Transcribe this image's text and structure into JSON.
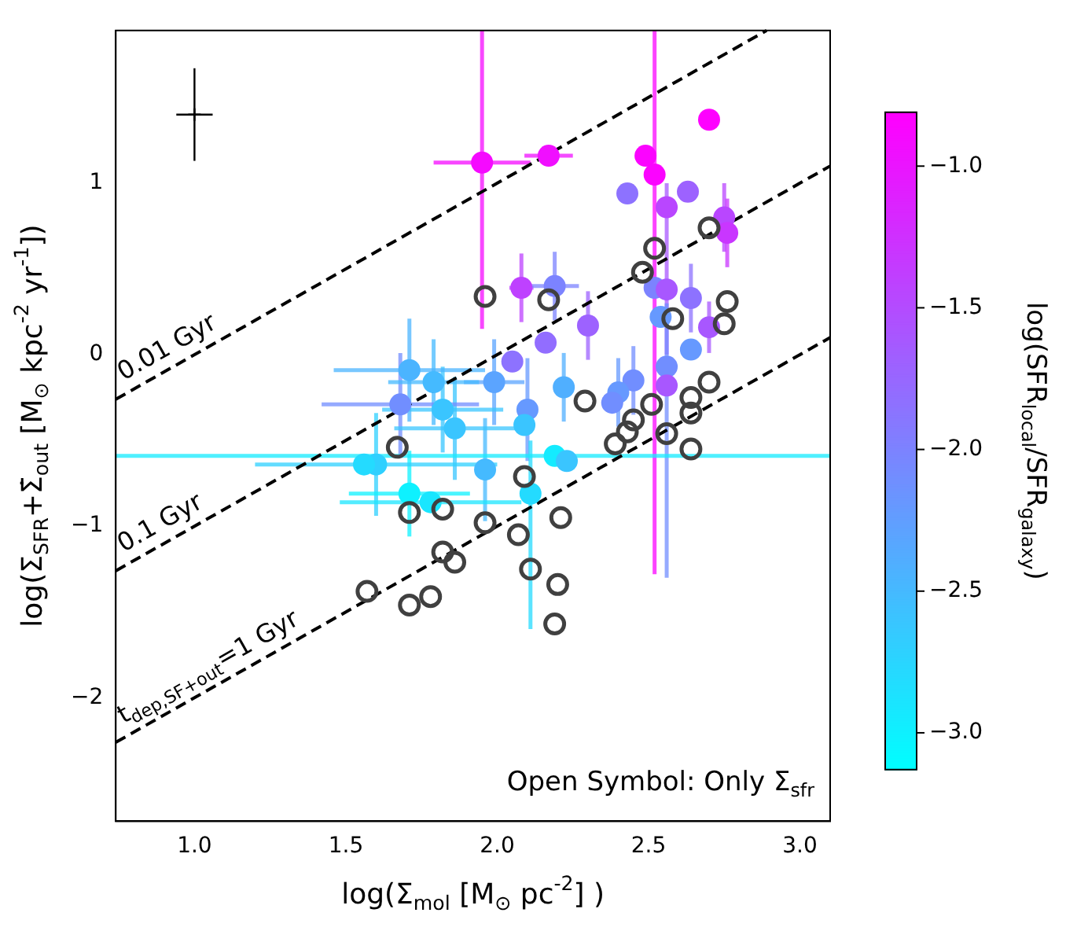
{
  "chart_data": {
    "type": "scatter",
    "xlabel": "log(Σ$_{mol}$ [M$_{⊙}$ pc$^{-2}$] )",
    "ylabel": "log(Σ$_{SFR}$+Σ̇$_{out}$ [M$_{⊙}$ kpc$^{-2}$ yr$^{-1}$])",
    "clabel": "log(SFR$_{local}$/SFR$_{galaxy}$)",
    "annotations": [
      "Open Symbol: Only Σ$_{sfr}$"
    ],
    "xlim": [
      0.74,
      3.1
    ],
    "xticks": [
      {
        "value": 1,
        "label": "1.0"
      },
      {
        "value": 1.5,
        "label": "1.5"
      },
      {
        "value": 2,
        "label": "2.0"
      },
      {
        "value": 2.5,
        "label": "2.5"
      },
      {
        "value": 3,
        "label": "3.0"
      }
    ],
    "ylim": [
      -2.72,
      1.89
    ],
    "yticks": [
      {
        "value": -2,
        "label": "−2"
      },
      {
        "value": -1,
        "label": "−1"
      },
      0,
      1
    ],
    "clim": [
      -3.13,
      -0.81
    ],
    "cticks": [
      {
        "value": -3,
        "label": "−3.0"
      },
      {
        "value": -2.5,
        "label": "−2.5"
      },
      {
        "value": -2,
        "label": "−2.0"
      },
      {
        "value": -1.5,
        "label": "−1.5"
      },
      {
        "value": -1,
        "label": "−1.0"
      }
    ],
    "grid": false,
    "legend": false,
    "series": [
      {
        "type": "line",
        "name": "0.01 Gyr",
        "color": "#000000",
        "line_style": "dashed",
        "marker": "none",
        "x": [
          0.74,
          2.89
        ],
        "values": [
          -0.26,
          1.89
        ]
      },
      {
        "type": "line",
        "name": "0.1 Gyr",
        "color": "#000000",
        "line_style": "dashed",
        "marker": "none",
        "x": [
          0.74,
          3.1
        ],
        "values": [
          -1.26,
          1.1
        ]
      },
      {
        "type": "line",
        "name": "t$_{dep,SF+out}$=1 Gyr",
        "color": "#000000",
        "line_style": "dashed",
        "marker": "none",
        "x": [
          0.74,
          3.1
        ],
        "values": [
          -2.26,
          0.1
        ]
      },
      {
        "marker": "circle",
        "colors": [
          "#f50aff",
          "#f00fff",
          "#fb04ff",
          "#fb04ff",
          "#fe01ff",
          "#8d72ff",
          "#9d62ff",
          "#b946ff",
          "#b946ff",
          "#c936ff",
          "#be41ff",
          "#7c83ff",
          "#8d72ff",
          "#7c83ff",
          "#a857ff",
          "#6699ff",
          "#9d62ff",
          "#a857ff",
          "#926dff",
          "#8d72ff",
          "#5ba4ff",
          "#4bb4ff",
          "#45baff",
          "#718eff",
          "#3ac5ff",
          "#3ac5ff",
          "#6699ff",
          "#2fd0ff",
          "#24dbff",
          "#45baff",
          "#24dbff",
          "#0ef1ff",
          "#19e6ff",
          "#3ac5ff",
          "#6699ff",
          "#718eff",
          "#a857ff",
          "#718eff",
          "#6699ff",
          "#718eff",
          "#50afff",
          "#14ebff",
          "#3ac5ff"
        ],
        "x": [
          1.95,
          2.17,
          2.49,
          2.52,
          2.7,
          2.43,
          2.63,
          2.56,
          2.75,
          2.76,
          2.08,
          2.19,
          2.64,
          2.52,
          2.56,
          2.54,
          2.3,
          2.7,
          2.16,
          2.05,
          1.99,
          1.71,
          1.79,
          1.68,
          1.82,
          1.86,
          2.1,
          1.6,
          1.56,
          1.96,
          2.11,
          1.71,
          1.78,
          2.09,
          2.64,
          2.56,
          2.56,
          2.45,
          2.4,
          2.38,
          2.22,
          2.19,
          2.23
        ],
        "values": [
          1.12,
          1.16,
          1.16,
          1.05,
          1.37,
          0.94,
          0.95,
          0.86,
          0.8,
          0.71,
          0.39,
          0.4,
          0.33,
          0.39,
          0.38,
          0.22,
          0.17,
          0.16,
          0.07,
          -0.04,
          -0.16,
          -0.09,
          -0.16,
          -0.29,
          -0.32,
          -0.43,
          -0.32,
          -0.64,
          -0.64,
          -0.67,
          -0.81,
          -0.81,
          -0.86,
          -0.41,
          0.03,
          -0.07,
          -0.18,
          -0.15,
          -0.22,
          -0.28,
          -0.19,
          -0.59,
          -0.62
        ],
        "cvalues": [
          -0.9,
          -0.95,
          -0.85,
          -0.85,
          -0.82,
          -1.85,
          -1.7,
          -1.45,
          -1.45,
          -1.3,
          -1.4,
          -2.0,
          -1.85,
          -2.0,
          -1.6,
          -2.2,
          -1.7,
          -1.6,
          -1.8,
          -1.85,
          -2.3,
          -2.45,
          -2.5,
          -2.1,
          -2.6,
          -2.6,
          -2.2,
          -2.7,
          -2.8,
          -2.5,
          -2.8,
          -3.0,
          -2.9,
          -2.6,
          -2.2,
          -2.1,
          -1.6,
          -2.1,
          -2.2,
          -2.1,
          -2.4,
          -2.95,
          -2.6
        ],
        "errors": [
          [
            0.15,
            1.89
          ],
          0.05,
          null,
          [
            -1.28,
            1.89
          ],
          null,
          null,
          null,
          null,
          0.2,
          0.2,
          0.2,
          0.2,
          0.2,
          null,
          [
            0.0,
            1.0
          ],
          null,
          0.2,
          0.15,
          null,
          null,
          0.25,
          0.3,
          0.25,
          0.3,
          0.25,
          0.3,
          0.3,
          0.3,
          null,
          0.3,
          [
            -1.6,
            -0.5
          ],
          0.25,
          null,
          null,
          null,
          [
            -1.3,
            0.3
          ],
          null,
          0.2,
          0.2,
          null,
          0.2,
          null,
          null
        ],
        "xerrors": [
          0.16,
          0.08,
          null,
          null,
          null,
          null,
          null,
          null,
          null,
          null,
          0.04,
          0.08,
          null,
          null,
          null,
          null,
          null,
          null,
          null,
          null,
          0.1,
          0.25,
          0.15,
          0.26,
          0.2,
          0.2,
          null,
          0.4,
          null,
          null,
          null,
          0.2,
          0.3,
          null,
          null,
          null,
          null,
          null,
          null,
          null,
          null,
          [
            0.74,
            3.1
          ],
          null
        ]
      },
      {
        "marker": "circle",
        "color": "#404040",
        "x": [
          1.96,
          2.17,
          2.52,
          2.48,
          2.7,
          2.76,
          2.58,
          2.75,
          1.67,
          1.71,
          1.82,
          1.96,
          2.07,
          2.09,
          2.21,
          1.82,
          1.86,
          2.11,
          2.7,
          2.64,
          2.29,
          2.51,
          2.64,
          2.45,
          2.43,
          2.39,
          2.56,
          2.64,
          1.57,
          1.71,
          1.78,
          2.2,
          2.19
        ],
        "values": [
          0.34,
          0.32,
          0.62,
          0.48,
          0.74,
          0.31,
          0.21,
          0.18,
          -0.54,
          -0.92,
          -0.9,
          -0.98,
          -1.05,
          -0.71,
          -0.95,
          -1.15,
          -1.21,
          -1.25,
          -0.16,
          -0.25,
          -0.27,
          -0.29,
          -0.34,
          -0.38,
          -0.45,
          -0.52,
          -0.46,
          -0.55,
          -1.38,
          -1.46,
          -1.41,
          -1.34,
          -1.57
        ]
      },
      {
        "marker": "cross",
        "color": "#000000",
        "x": [
          1.0
        ],
        "values": [
          1.4
        ],
        "errors": [
          0.27
        ],
        "xerrors": [
          0.06
        ]
      }
    ]
  }
}
